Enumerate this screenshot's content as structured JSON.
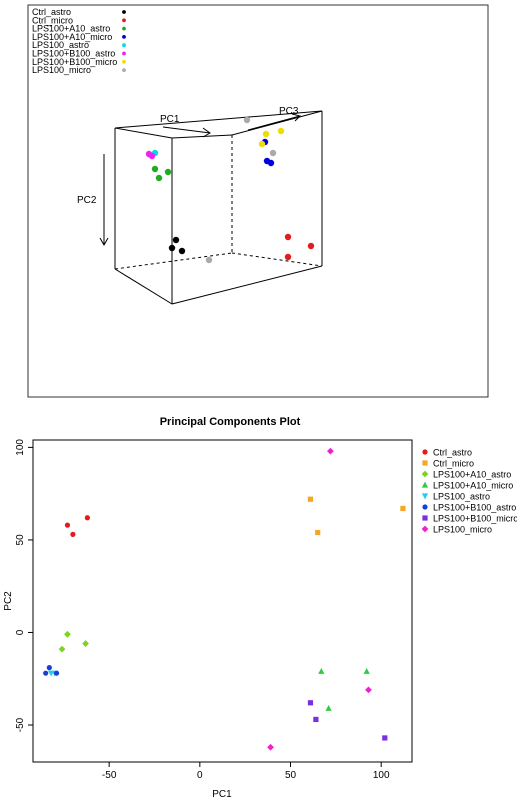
{
  "chart_data": [
    {
      "type": "scatter",
      "projection": "3d",
      "title": "",
      "axes": {
        "x": "PC1",
        "y": "PC2",
        "z": "PC3"
      },
      "legend": {
        "placement": "top-left",
        "entries": [
          {
            "name": "Ctrl_astro",
            "color": "#000000",
            "shape": "circle"
          },
          {
            "name": "Ctrl_micro",
            "color": "#e41a1c",
            "shape": "circle"
          },
          {
            "name": "LPS100+A10_astro",
            "color": "#22aa22",
            "shape": "circle"
          },
          {
            "name": "LPS100+A10_micro",
            "color": "#0000dd",
            "shape": "circle"
          },
          {
            "name": "LPS100_astro",
            "color": "#00dddd",
            "shape": "circle"
          },
          {
            "name": "LPS100+B100_astro",
            "color": "#ee22ee",
            "shape": "circle"
          },
          {
            "name": "LPS100+B100_micro",
            "color": "#eedd00",
            "shape": "circle"
          },
          {
            "name": "LPS100_micro",
            "color": "#aaaaaa",
            "shape": "circle"
          }
        ]
      },
      "series": [
        {
          "name": "Ctrl_astro",
          "points": [
            {
              "x": 172,
              "y": 248
            },
            {
              "x": 176,
              "y": 240
            },
            {
              "x": 182,
              "y": 251
            }
          ]
        },
        {
          "name": "Ctrl_micro",
          "points": [
            {
              "x": 288,
              "y": 237
            },
            {
              "x": 311,
              "y": 246
            },
            {
              "x": 288,
              "y": 257
            }
          ]
        },
        {
          "name": "LPS100+A10_astro",
          "points": [
            {
              "x": 155,
              "y": 169
            },
            {
              "x": 168,
              "y": 172
            },
            {
              "x": 159,
              "y": 178
            }
          ]
        },
        {
          "name": "LPS100+A10_micro",
          "points": [
            {
              "x": 265,
              "y": 142
            },
            {
              "x": 267,
              "y": 161
            },
            {
              "x": 271,
              "y": 163
            }
          ]
        },
        {
          "name": "LPS100_astro",
          "points": [
            {
              "x": 155,
              "y": 153
            }
          ]
        },
        {
          "name": "LPS100+B100_astro",
          "points": [
            {
              "x": 149,
              "y": 154
            },
            {
              "x": 152,
              "y": 156
            }
          ]
        },
        {
          "name": "LPS100+B100_micro",
          "points": [
            {
              "x": 266,
              "y": 134
            },
            {
              "x": 281,
              "y": 131
            },
            {
              "x": 262,
              "y": 144
            }
          ]
        },
        {
          "name": "LPS100_micro",
          "points": [
            {
              "x": 247,
              "y": 120
            },
            {
              "x": 273,
              "y": 153
            },
            {
              "x": 209,
              "y": 260
            }
          ]
        }
      ]
    },
    {
      "type": "scatter",
      "title": "Principal Components Plot",
      "xlabel": "PC1",
      "ylabel": "PC2",
      "xlim": [
        -92,
        117
      ],
      "ylim": [
        -70,
        104
      ],
      "xticks": [
        -50,
        0,
        50,
        100
      ],
      "yticks": [
        -50,
        0,
        50,
        100
      ],
      "grid": false,
      "legend": {
        "placement": "top-right",
        "entries": [
          {
            "name": "Ctrl_astro",
            "color": "#e41a1c",
            "shape": "circle"
          },
          {
            "name": "Ctrl_micro",
            "color": "#f5a623",
            "shape": "square"
          },
          {
            "name": "LPS100+A10_astro",
            "color": "#7ed321",
            "shape": "diamond"
          },
          {
            "name": "LPS100+A10_micro",
            "color": "#2ecc40",
            "shape": "triangle-up"
          },
          {
            "name": "LPS100_astro",
            "color": "#22ccee",
            "shape": "triangle-down"
          },
          {
            "name": "LPS100+B100_astro",
            "color": "#1a3fd6",
            "shape": "circle"
          },
          {
            "name": "LPS100+B100_micro",
            "color": "#7b2fe0",
            "shape": "square"
          },
          {
            "name": "LPS100_micro",
            "color": "#ee22cc",
            "shape": "diamond"
          }
        ]
      },
      "series": [
        {
          "name": "Ctrl_astro",
          "points": [
            {
              "x": -73,
              "y": 58
            },
            {
              "x": -70,
              "y": 53
            },
            {
              "x": -62,
              "y": 62
            }
          ]
        },
        {
          "name": "Ctrl_micro",
          "points": [
            {
              "x": 61,
              "y": 72
            },
            {
              "x": 65,
              "y": 54
            },
            {
              "x": 112,
              "y": 67
            }
          ]
        },
        {
          "name": "LPS100+A10_astro",
          "points": [
            {
              "x": -76,
              "y": -9
            },
            {
              "x": -73,
              "y": -1
            },
            {
              "x": -63,
              "y": -6
            }
          ]
        },
        {
          "name": "LPS100+A10_micro",
          "points": [
            {
              "x": 67,
              "y": -21
            },
            {
              "x": 71,
              "y": -41
            },
            {
              "x": 92,
              "y": -21
            }
          ]
        },
        {
          "name": "LPS100_astro",
          "points": [
            {
              "x": -82,
              "y": -22
            },
            {
              "x": -80,
              "y": -22
            }
          ]
        },
        {
          "name": "LPS100+B100_astro",
          "points": [
            {
              "x": -85,
              "y": -22
            },
            {
              "x": -83,
              "y": -19
            },
            {
              "x": -79,
              "y": -22
            }
          ]
        },
        {
          "name": "LPS100+B100_micro",
          "points": [
            {
              "x": 61,
              "y": -38
            },
            {
              "x": 64,
              "y": -47
            },
            {
              "x": 102,
              "y": -57
            }
          ]
        },
        {
          "name": "LPS100_micro",
          "points": [
            {
              "x": 39,
              "y": -62
            },
            {
              "x": 72,
              "y": 98
            },
            {
              "x": 93,
              "y": -31
            }
          ]
        }
      ]
    }
  ]
}
